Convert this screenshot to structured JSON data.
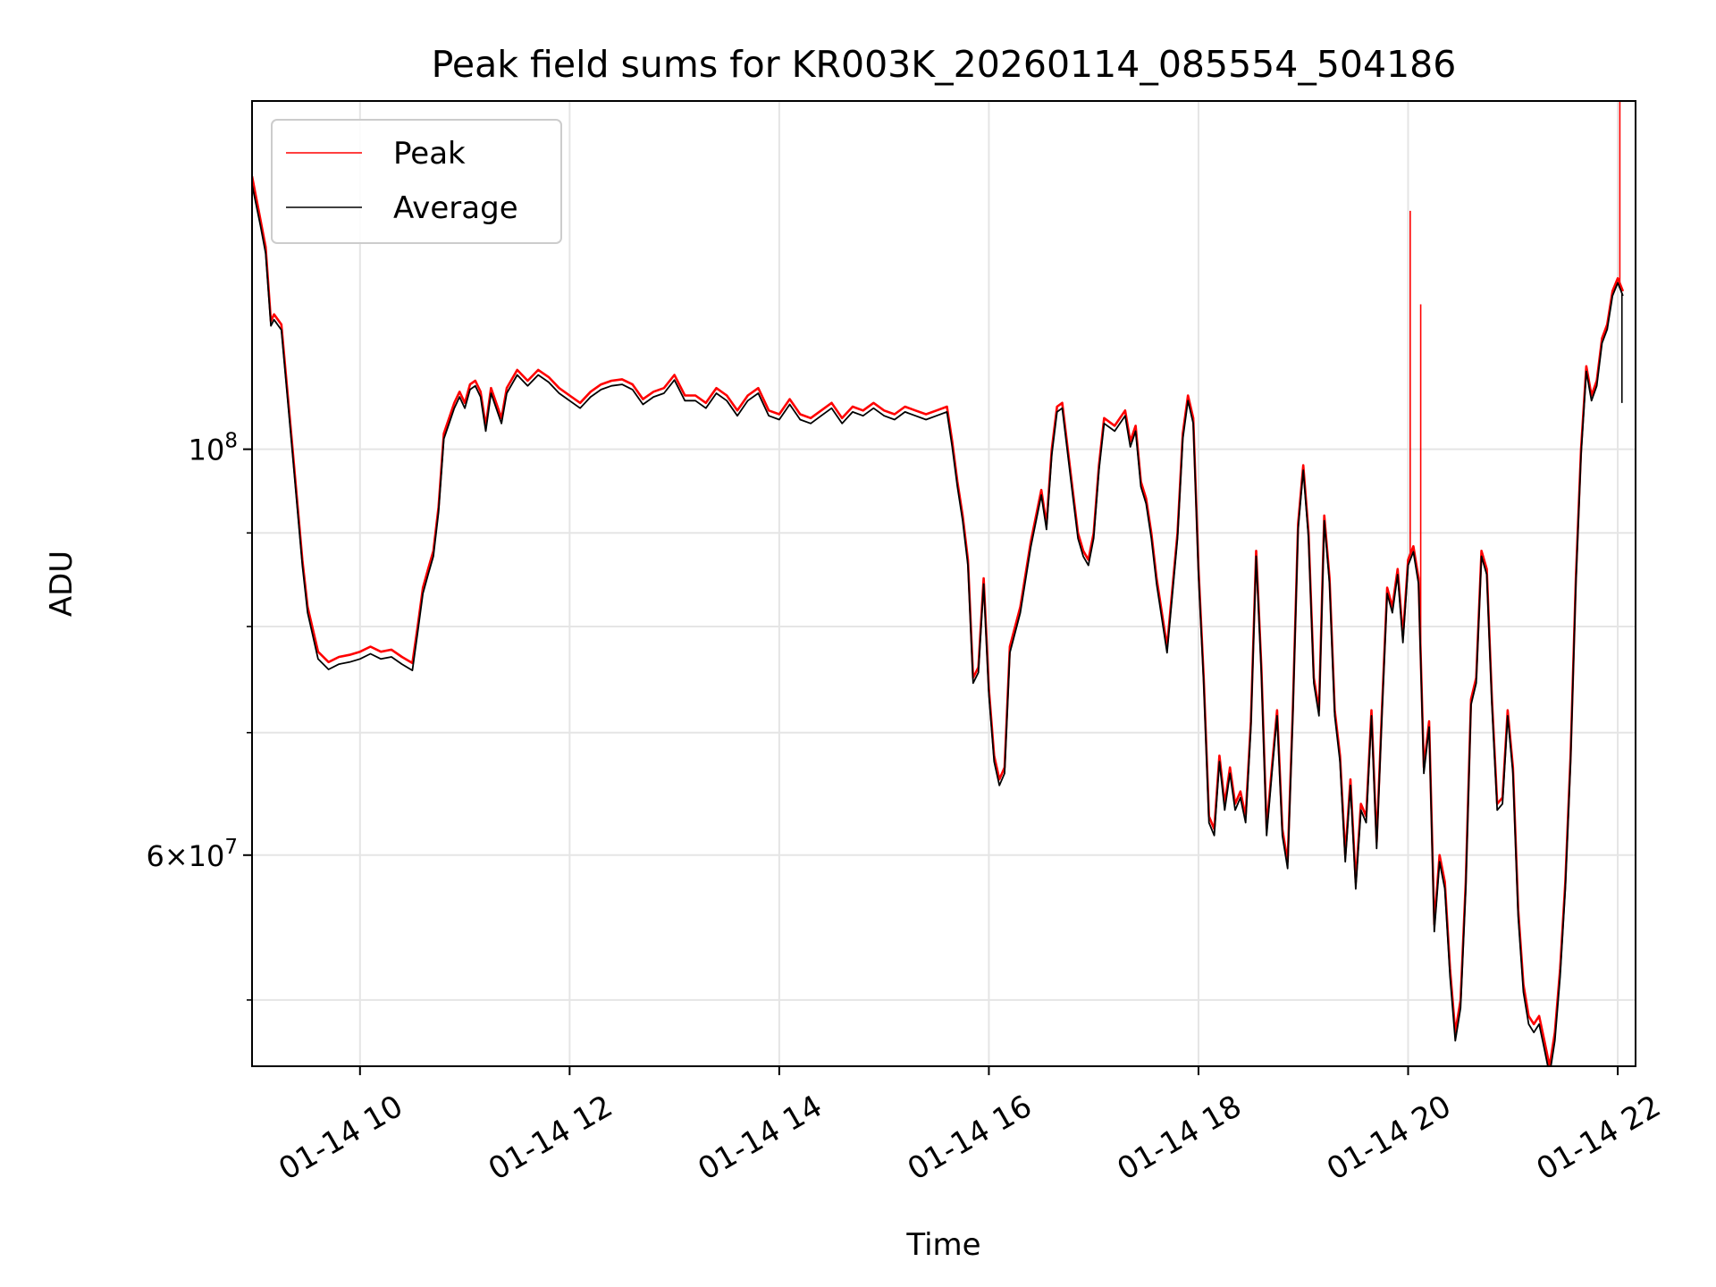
{
  "chart_data": {
    "type": "line",
    "title": "Peak field sums for KR003K_20260114_085554_504186",
    "xlabel": "Time",
    "ylabel": "ADU",
    "yscale": "log",
    "ylim": [
      46000000,
      155000000
    ],
    "xlim_hours": [
      8.97,
      22.17
    ],
    "grid": true,
    "legend_position": "top-left",
    "x_ticks": [
      {
        "hour": 10,
        "label": "01-14 10"
      },
      {
        "hour": 12,
        "label": "01-14 12"
      },
      {
        "hour": 14,
        "label": "01-14 14"
      },
      {
        "hour": 16,
        "label": "01-14 16"
      },
      {
        "hour": 18,
        "label": "01-14 18"
      },
      {
        "hour": 20,
        "label": "01-14 20"
      },
      {
        "hour": 22,
        "label": "01-14 22"
      }
    ],
    "y_major_ticks": [
      {
        "value": 100000000,
        "base": "10",
        "exp": "8"
      },
      {
        "value": 60000000,
        "mant": "6",
        "base": "10",
        "exp": "7"
      }
    ],
    "y_minor_ticks": [
      50000000,
      70000000,
      80000000,
      90000000
    ],
    "x_hours": [
      8.97,
      9.05,
      9.1,
      9.15,
      9.18,
      9.25,
      9.35,
      9.45,
      9.5,
      9.6,
      9.7,
      9.8,
      9.9,
      10.0,
      10.1,
      10.2,
      10.3,
      10.4,
      10.5,
      10.55,
      10.6,
      10.65,
      10.7,
      10.75,
      10.8,
      10.85,
      10.9,
      10.95,
      11.0,
      11.05,
      11.1,
      11.15,
      11.2,
      11.25,
      11.3,
      11.35,
      11.4,
      11.5,
      11.6,
      11.7,
      11.8,
      11.9,
      12.0,
      12.1,
      12.2,
      12.3,
      12.4,
      12.5,
      12.6,
      12.7,
      12.8,
      12.9,
      13.0,
      13.1,
      13.2,
      13.3,
      13.4,
      13.5,
      13.6,
      13.7,
      13.8,
      13.9,
      14.0,
      14.1,
      14.2,
      14.3,
      14.4,
      14.5,
      14.6,
      14.7,
      14.8,
      14.9,
      15.0,
      15.1,
      15.2,
      15.3,
      15.4,
      15.5,
      15.6,
      15.65,
      15.7,
      15.75,
      15.8,
      15.85,
      15.9,
      15.95,
      16.0,
      16.05,
      16.1,
      16.15,
      16.2,
      16.3,
      16.4,
      16.5,
      16.55,
      16.6,
      16.65,
      16.7,
      16.8,
      16.85,
      16.9,
      16.95,
      17.0,
      17.05,
      17.1,
      17.2,
      17.3,
      17.35,
      17.4,
      17.45,
      17.5,
      17.55,
      17.6,
      17.7,
      17.8,
      17.85,
      17.9,
      17.95,
      18.0,
      18.05,
      18.1,
      18.15,
      18.2,
      18.25,
      18.3,
      18.35,
      18.4,
      18.45,
      18.5,
      18.55,
      18.6,
      18.65,
      18.7,
      18.75,
      18.8,
      18.85,
      18.9,
      18.95,
      19.0,
      19.05,
      19.1,
      19.15,
      19.2,
      19.25,
      19.3,
      19.35,
      19.4,
      19.45,
      19.5,
      19.55,
      19.6,
      19.65,
      19.7,
      19.75,
      19.8,
      19.85,
      19.9,
      19.95,
      20.0,
      20.05,
      20.1,
      20.15,
      20.2,
      20.25,
      20.3,
      20.35,
      20.4,
      20.45,
      20.5,
      20.55,
      20.6,
      20.65,
      20.7,
      20.75,
      20.8,
      20.85,
      20.9,
      20.95,
      21.0,
      21.05,
      21.1,
      21.15,
      21.2,
      21.25,
      21.3,
      21.35,
      21.4,
      21.45,
      21.5,
      21.55,
      21.6,
      21.65,
      21.7,
      21.75,
      21.8,
      21.85,
      21.9,
      21.95,
      22.0,
      22.05,
      22.1,
      22.15
    ],
    "series": [
      {
        "name": "Peak",
        "color": "#ff0000",
        "values": [
          141000000,
          133500000,
          129000000,
          117500000,
          118500000,
          117000000,
          101000000,
          87000000,
          82000000,
          77500000,
          76500000,
          77000000,
          77200000,
          77500000,
          78000000,
          77500000,
          77700000,
          77000000,
          76400000,
          80000000,
          84000000,
          86000000,
          88000000,
          93000000,
          102000000,
          104000000,
          106000000,
          107500000,
          106000000,
          108500000,
          109000000,
          107500000,
          103000000,
          108000000,
          106000000,
          104000000,
          108000000,
          110500000,
          109000000,
          110500000,
          109500000,
          108000000,
          107000000,
          106000000,
          107500000,
          108500000,
          109000000,
          109200000,
          108500000,
          106500000,
          107500000,
          108000000,
          109800000,
          107000000,
          107000000,
          106000000,
          108000000,
          107000000,
          105000000,
          107000000,
          108000000,
          105000000,
          104500000,
          106500000,
          104500000,
          104000000,
          105000000,
          106000000,
          104000000,
          105500000,
          105000000,
          106000000,
          105000000,
          104500000,
          105500000,
          105000000,
          104500000,
          105000000,
          105500000,
          101000000,
          96000000,
          92000000,
          87000000,
          75000000,
          76000000,
          85000000,
          74000000,
          68000000,
          66000000,
          67000000,
          78000000,
          82000000,
          89000000,
          95000000,
          91000000,
          100000000,
          105500000,
          106000000,
          95000000,
          90000000,
          88000000,
          87000000,
          90000000,
          98000000,
          104000000,
          103000000,
          105000000,
          101000000,
          103000000,
          96000000,
          94000000,
          90000000,
          85000000,
          78000000,
          90000000,
          102000000,
          107000000,
          104000000,
          86000000,
          75000000,
          63000000,
          62000000,
          68000000,
          64000000,
          67000000,
          64000000,
          65000000,
          63000000,
          71000000,
          88000000,
          76000000,
          62000000,
          67000000,
          72000000,
          62000000,
          59500000,
          72000000,
          91000000,
          98000000,
          90000000,
          75000000,
          72000000,
          92000000,
          85000000,
          72000000,
          68000000,
          60000000,
          66000000,
          58000000,
          64000000,
          63000000,
          72000000,
          61000000,
          72000000,
          84000000,
          82000000,
          86000000,
          79000000,
          87000000,
          88500000,
          85000000,
          67000000,
          71000000,
          55000000,
          60000000,
          58000000,
          52000000,
          48000000,
          50000000,
          58000000,
          73000000,
          75000000,
          88000000,
          86000000,
          73000000,
          64000000,
          64500000,
          72000000,
          67000000,
          56000000,
          51000000,
          49000000,
          48500000,
          49000000,
          47500000,
          46000000,
          48000000,
          52000000,
          58000000,
          68000000,
          85000000,
          100000000,
          111000000,
          107000000,
          109000000,
          115000000,
          117000000,
          122000000,
          124000000,
          122000000
        ]
      },
      {
        "name": "Average",
        "color": "#000000",
        "values": [
          139500000,
          132500000,
          128000000,
          116800000,
          117700000,
          116200000,
          100300000,
          86400000,
          81400000,
          76800000,
          75800000,
          76300000,
          76500000,
          76800000,
          77300000,
          76800000,
          77000000,
          76300000,
          75700000,
          79400000,
          83400000,
          85400000,
          87400000,
          92400000,
          101300000,
          103300000,
          105300000,
          106800000,
          105300000,
          107800000,
          108300000,
          106800000,
          102300000,
          107300000,
          105300000,
          103300000,
          107300000,
          109800000,
          108300000,
          109800000,
          108800000,
          107300000,
          106300000,
          105300000,
          106800000,
          107800000,
          108300000,
          108500000,
          107800000,
          105800000,
          106800000,
          107300000,
          109100000,
          106300000,
          106300000,
          105300000,
          107300000,
          106300000,
          104300000,
          106300000,
          107300000,
          104300000,
          103800000,
          105800000,
          103800000,
          103300000,
          104300000,
          105300000,
          103300000,
          104800000,
          104300000,
          105300000,
          104300000,
          103800000,
          104800000,
          104300000,
          103800000,
          104300000,
          104800000,
          100300000,
          95400000,
          91400000,
          86400000,
          74500000,
          75500000,
          84400000,
          73500000,
          67500000,
          65500000,
          66500000,
          77400000,
          81400000,
          88400000,
          94400000,
          90400000,
          99300000,
          104800000,
          105300000,
          94400000,
          89400000,
          87400000,
          86400000,
          89400000,
          97400000,
          103300000,
          102300000,
          104300000,
          100300000,
          102300000,
          95400000,
          93400000,
          89400000,
          84400000,
          77400000,
          89400000,
          101300000,
          106300000,
          103300000,
          85400000,
          74500000,
          62500000,
          61500000,
          67500000,
          63500000,
          66500000,
          63500000,
          64500000,
          62500000,
          70500000,
          87400000,
          75500000,
          61500000,
          66500000,
          71500000,
          61500000,
          59000000,
          71500000,
          90400000,
          97400000,
          89400000,
          74500000,
          71500000,
          91400000,
          84400000,
          71500000,
          67500000,
          59500000,
          65500000,
          57500000,
          63500000,
          62500000,
          71500000,
          60500000,
          71500000,
          83400000,
          81400000,
          85400000,
          78400000,
          86400000,
          87900000,
          84400000,
          66500000,
          70500000,
          54500000,
          59500000,
          57500000,
          51500000,
          47500000,
          49500000,
          57500000,
          72500000,
          74500000,
          87400000,
          85400000,
          72500000,
          63500000,
          64000000,
          71500000,
          66500000,
          55500000,
          50500000,
          48500000,
          48000000,
          48500000,
          47000000,
          45500000,
          47500000,
          51500000,
          57500000,
          67500000,
          84400000,
          99300000,
          110300000,
          106300000,
          108300000,
          114300000,
          116300000,
          121300000,
          123300000,
          121300000
        ]
      }
    ],
    "peak_spikes": [
      {
        "hour": 20.02,
        "value": 135000000
      },
      {
        "hour": 20.12,
        "value": 120000000
      },
      {
        "hour": 22.02,
        "value": 155000000
      }
    ],
    "average_dips": [
      {
        "hour": 22.04,
        "value": 106000000
      }
    ]
  }
}
